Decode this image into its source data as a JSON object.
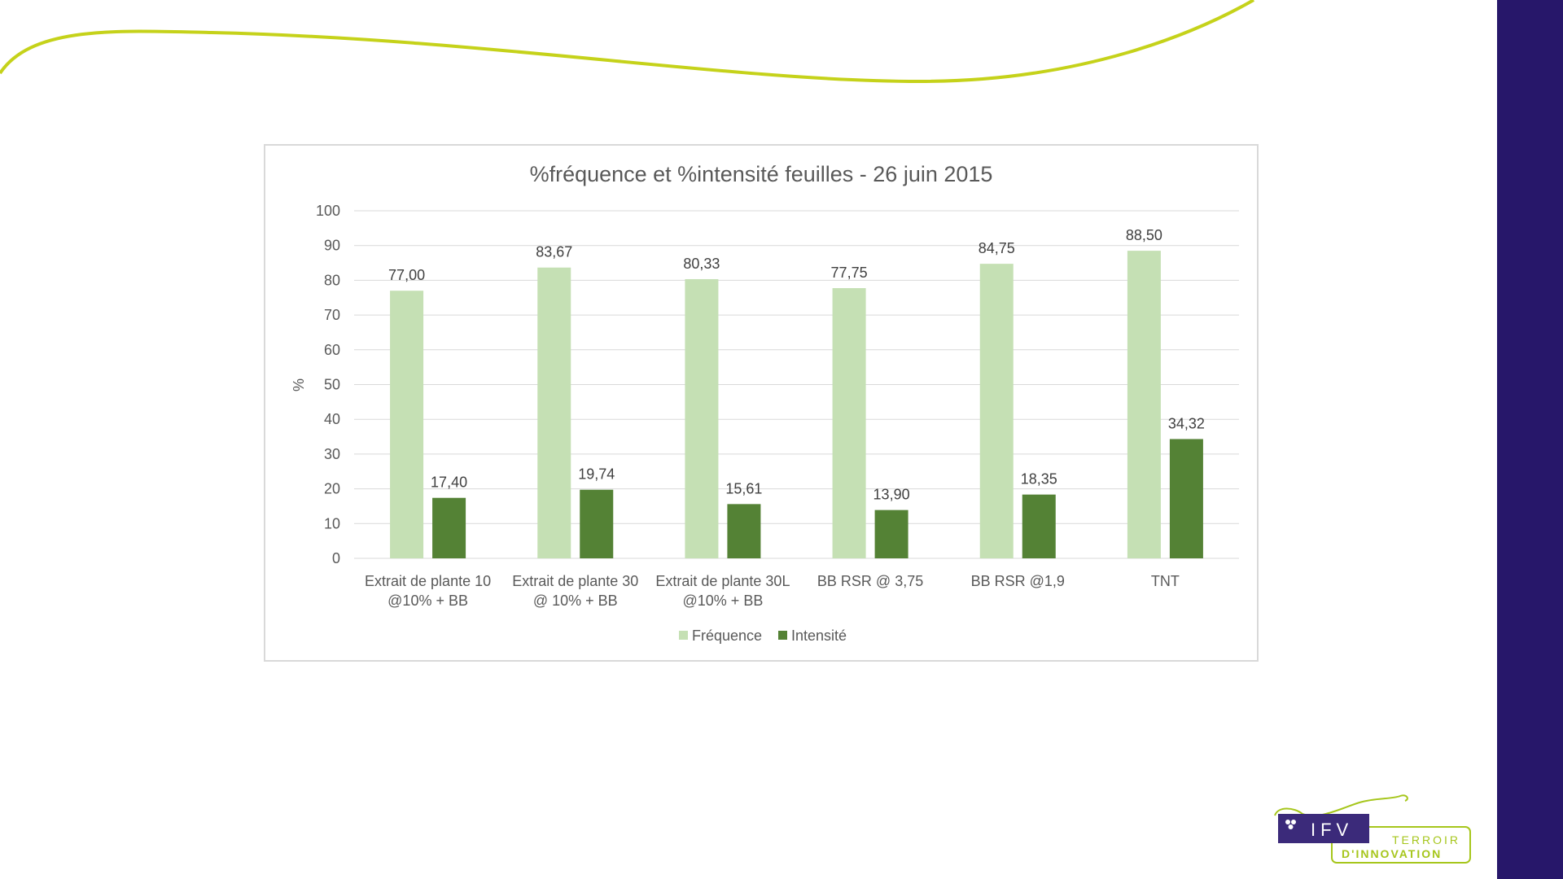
{
  "colors": {
    "background": "#ffffff",
    "right_band": "#27176a",
    "swoosh": "#c5d21a",
    "frequence": "#c5e0b4",
    "intensite": "#548235",
    "gridline": "#d9d9d9",
    "logo_purple": "#3b2a7a",
    "logo_green": "#a6c61c"
  },
  "logo": {
    "main": "IFV",
    "line1": "TERROIR",
    "line2": "D'INNOVATION",
    "icon": "grape-icon"
  },
  "chart_data": {
    "type": "bar",
    "title": "%fréquence et %intensité feuilles - 26 juin 2015",
    "xlabel": "",
    "ylabel": "%",
    "ylim": [
      0,
      100
    ],
    "yticks": [
      0,
      10,
      20,
      30,
      40,
      50,
      60,
      70,
      80,
      90,
      100
    ],
    "grid": true,
    "legend_position": "bottom",
    "categories": [
      [
        "Extrait de plante 10",
        "@10% + BB"
      ],
      [
        "Extrait de plante 30",
        "@ 10% + BB"
      ],
      [
        "Extrait de plante 30L",
        "@10% + BB"
      ],
      [
        "BB RSR @ 3,75"
      ],
      [
        "BB RSR @1,9"
      ],
      [
        "TNT"
      ]
    ],
    "series": [
      {
        "name": "Fréquence",
        "values": [
          77.0,
          83.67,
          80.33,
          77.75,
          84.75,
          88.5
        ],
        "labels": [
          "77,00",
          "83,67",
          "80,33",
          "77,75",
          "84,75",
          "88,50"
        ]
      },
      {
        "name": "Intensité",
        "values": [
          17.4,
          19.74,
          15.61,
          13.9,
          18.35,
          34.32
        ],
        "labels": [
          "17,40",
          "19,74",
          "15,61",
          "13,90",
          "18,35",
          "34,32"
        ]
      }
    ]
  }
}
